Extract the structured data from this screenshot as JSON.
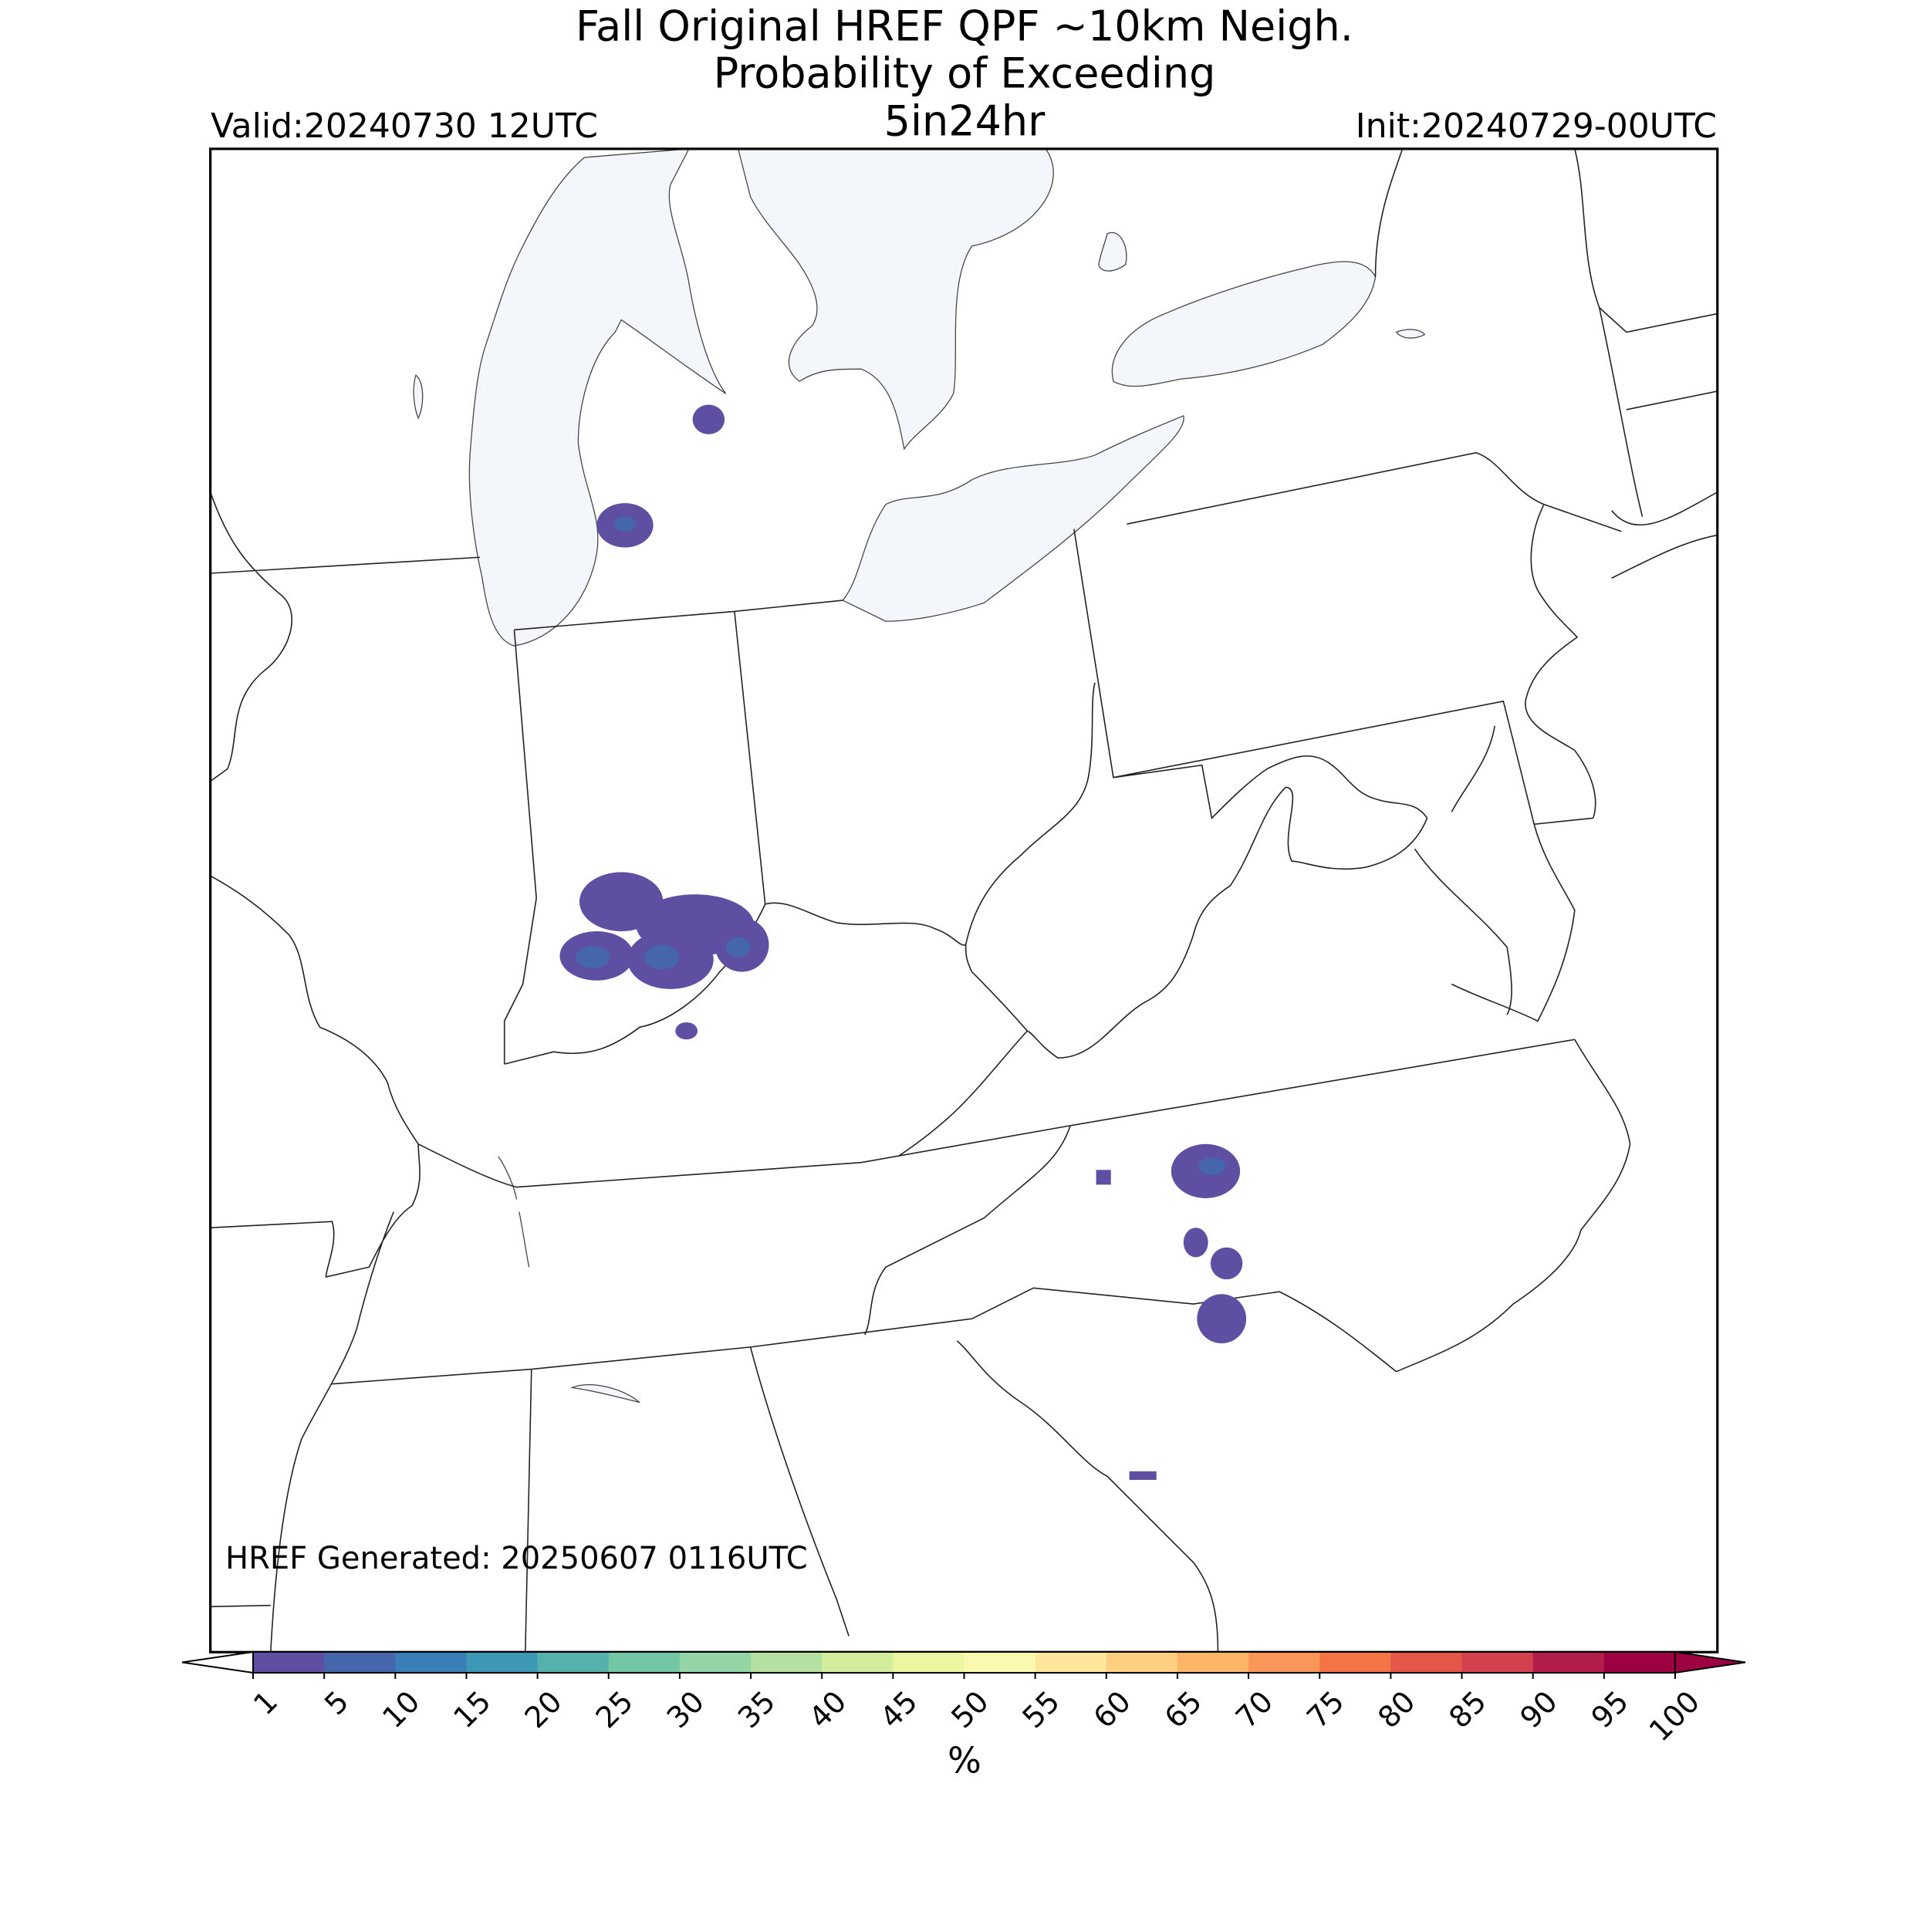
{
  "header": {
    "title_lines": [
      "Fall Original HREF QPF ~10km Neigh.",
      "Probability of Exceeding",
      "5in24hr"
    ],
    "valid": "Valid:20240730 12UTC",
    "init": "Init:20240729-00UTC"
  },
  "footer": {
    "generated": "HREF Generated: 20250607 0116UTC"
  },
  "colorbar": {
    "levels": [
      1,
      5,
      10,
      15,
      20,
      25,
      30,
      35,
      40,
      45,
      50,
      55,
      60,
      65,
      70,
      75,
      80,
      85,
      90,
      95,
      100
    ],
    "colors": [
      "#5e4fa2",
      "#4565ad",
      "#3a7eb8",
      "#3d98b5",
      "#56b1ad",
      "#73c7a4",
      "#95d4a4",
      "#b4e0a2",
      "#d2ed9c",
      "#ebf7a0",
      "#fbf8b0",
      "#fee79a",
      "#fdd07f",
      "#fdb567",
      "#fa9657",
      "#f47446",
      "#e55749",
      "#d3404e",
      "#b21d4a",
      "#9e0142"
    ],
    "extend_colors": [
      "#ffffff",
      "#9e0142"
    ],
    "label": "%"
  }
}
